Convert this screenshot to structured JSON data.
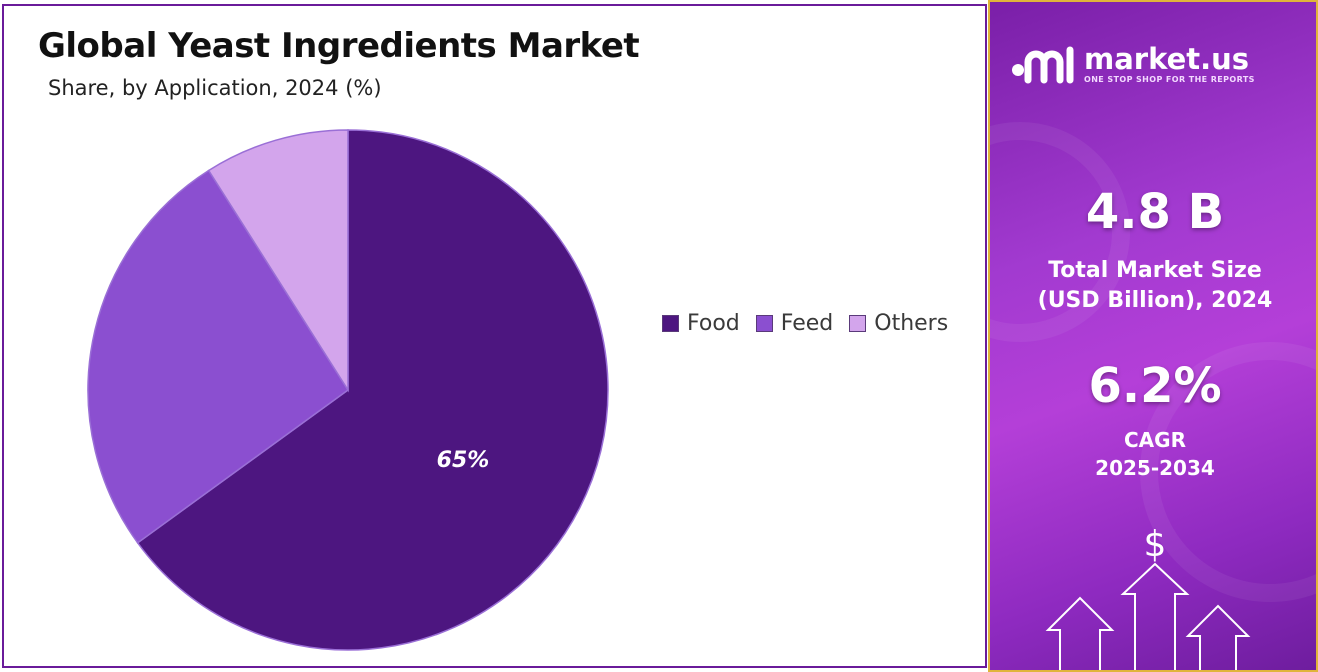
{
  "chart": {
    "title": "Global Yeast Ingredients Market",
    "subtitle": "Share, by Application, 2024 (%)"
  },
  "chart_data": {
    "type": "pie",
    "title": "Global Yeast Ingredients Market",
    "subtitle": "Share, by Application, 2024 (%)",
    "categories": [
      "Food",
      "Feed",
      "Others"
    ],
    "values": [
      65,
      26,
      9
    ],
    "data_labels": [
      "65%",
      "",
      ""
    ],
    "colors": [
      "#4d1680",
      "#8b4fd0",
      "#d3a5ec"
    ],
    "legend_position": "right"
  },
  "side_panel": {
    "brand_name": "market.us",
    "brand_tagline": "ONE STOP SHOP FOR THE REPORTS",
    "market_size_value": "4.8 B",
    "market_size_label_line1": "Total Market Size",
    "market_size_label_line2": "(USD Billion), 2024",
    "cagr_value": "6.2%",
    "cagr_label_line1": "CAGR",
    "cagr_label_line2": "2025-2034",
    "currency_symbol": "$",
    "accent_color": "#a23ad0",
    "border_color": "#e0b43a"
  }
}
